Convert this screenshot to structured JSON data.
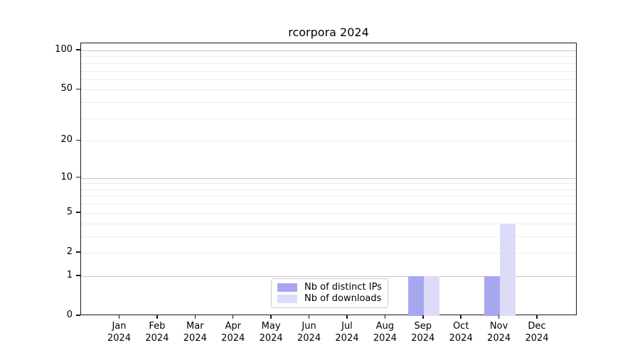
{
  "chart_data": {
    "type": "bar",
    "title": "rcorpora 2024",
    "categories": [
      "Jan",
      "Feb",
      "Mar",
      "Apr",
      "May",
      "Jun",
      "Jul",
      "Aug",
      "Sep",
      "Oct",
      "Nov",
      "Dec"
    ],
    "category_year": "2024",
    "series": [
      {
        "name": "Nb of distinct IPs",
        "color": "#a7a7f0",
        "values": [
          0,
          0,
          0,
          0,
          0,
          0,
          0,
          0,
          1,
          0,
          1,
          0
        ]
      },
      {
        "name": "Nb of downloads",
        "color": "#dcdcf8",
        "values": [
          0,
          0,
          0,
          0,
          0,
          0,
          0,
          0,
          1,
          0,
          4,
          0
        ]
      }
    ],
    "yscale": "log1p",
    "ylim": [
      0,
      114
    ],
    "yticks": [
      0,
      1,
      2,
      5,
      10,
      20,
      50,
      100
    ],
    "y_major_gridlines": [
      1,
      10,
      100
    ],
    "y_minor_gridlines": [
      2,
      3,
      4,
      5,
      6,
      7,
      8,
      9,
      20,
      30,
      40,
      50,
      60,
      70,
      80,
      90
    ],
    "grid": "on",
    "legend_position": "lower center",
    "xlabel": "",
    "ylabel": ""
  }
}
